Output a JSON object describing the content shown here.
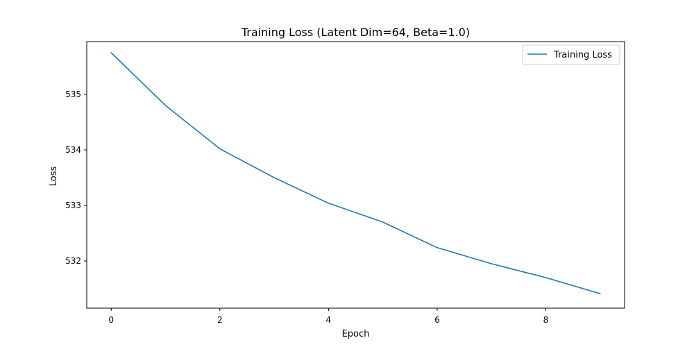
{
  "chart_data": {
    "type": "line",
    "title": "Training Loss (Latent Dim=64, Beta=1.0)",
    "xlabel": "Epoch",
    "ylabel": "Loss",
    "xlim": [
      -0.45,
      9.45
    ],
    "ylim": [
      531.15,
      535.95
    ],
    "xticks": [
      0,
      2,
      4,
      6,
      8
    ],
    "yticks": [
      532,
      533,
      534,
      535
    ],
    "grid": false,
    "legend_position": "top-right",
    "series": [
      {
        "name": "Training Loss",
        "color": "#1f77b4",
        "x": [
          0,
          1,
          2,
          3,
          4,
          5,
          6,
          7,
          8,
          9
        ],
        "y": [
          535.75,
          534.8,
          534.02,
          533.5,
          533.04,
          532.7,
          532.24,
          531.95,
          531.7,
          531.41
        ]
      }
    ]
  }
}
